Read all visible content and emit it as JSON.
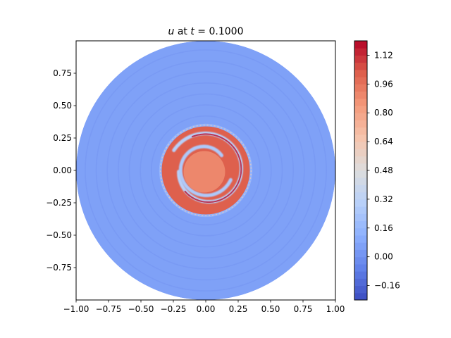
{
  "chart_data": {
    "type": "heatmap",
    "title": "u at t = 0.1000",
    "title_parts": {
      "var": "u",
      "mid": " at ",
      "tvar": "t",
      "eq": " = 0.1000"
    },
    "xlabel": "",
    "ylabel": "",
    "xlim": [
      -1.0,
      1.0
    ],
    "ylim": [
      -1.0,
      1.0
    ],
    "x_ticks": [
      -1.0,
      -0.75,
      -0.5,
      -0.25,
      0.0,
      0.25,
      0.5,
      0.75,
      1.0
    ],
    "x_tick_labels": [
      "−1.00",
      "−0.75",
      "−0.50",
      "−0.25",
      "0.00",
      "0.25",
      "0.50",
      "0.75",
      "1.00"
    ],
    "y_ticks": [
      0.75,
      0.5,
      0.25,
      0.0,
      -0.25,
      -0.5,
      -0.75
    ],
    "y_tick_labels": [
      "0.75",
      "0.50",
      "0.25",
      "0.00",
      "−0.25",
      "−0.50",
      "−0.75"
    ],
    "domain": {
      "shape": "disk",
      "center": [
        0.0,
        0.0
      ],
      "radius": 1.0
    },
    "colormap": "coolwarm",
    "colorbar": {
      "vmin": -0.24,
      "vmax": 1.2,
      "ticks": [
        -0.16,
        0.0,
        0.16,
        0.32,
        0.48,
        0.64,
        0.8,
        0.96,
        1.12
      ],
      "tick_labels": [
        "−0.16",
        "0.00",
        "0.16",
        "0.32",
        "0.48",
        "0.64",
        "0.80",
        "0.96",
        "1.12"
      ],
      "levels": 36
    },
    "field_features": {
      "background_value": 0.06,
      "halo": {
        "radius": 0.36,
        "value": 0.14
      },
      "core": {
        "radius": 0.16,
        "value": 0.88
      },
      "spiral_ring": {
        "inner_radius": 0.18,
        "outer_radius": 0.34,
        "value": 1.0
      },
      "spiral_gap_value": 0.3
    },
    "grid": false,
    "legend": "none"
  }
}
